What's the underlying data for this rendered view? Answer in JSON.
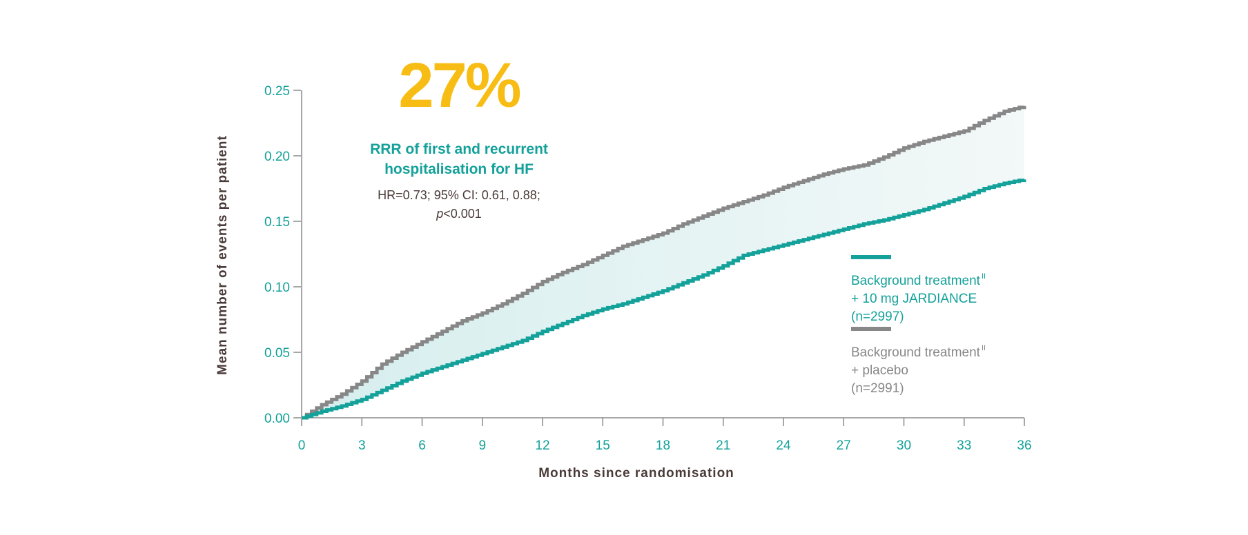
{
  "headline": {
    "value": "27%",
    "title_line1": "RRR of first and recurrent",
    "title_line2": "hospitalisation for HF",
    "stats_line1": "HR=0.73; 95% CI: 0.61, 0.88;",
    "stats_p": "p",
    "stats_p_value": "<0.001"
  },
  "legend": {
    "items": [
      {
        "line1": "Background treatment",
        "sup": "II",
        "line2": "+ 10 mg JARDIANCE",
        "line3": "(n=2997)",
        "color": "#13a19a"
      },
      {
        "line1": "Background treatment",
        "sup": "II",
        "line2": "+ placebo",
        "line3": "(n=2991)",
        "color": "#878787"
      }
    ]
  },
  "chart_data": {
    "type": "line",
    "xlabel": "Months since randomisation",
    "ylabel": "Mean number of events per patient",
    "xlim": [
      0,
      36
    ],
    "ylim": [
      0,
      0.25
    ],
    "xticks": [
      "0",
      "3",
      "6",
      "9",
      "12",
      "15",
      "18",
      "21",
      "24",
      "27",
      "30",
      "33",
      "36"
    ],
    "yticks": [
      "0.00",
      "0.05",
      "0.10",
      "0.15",
      "0.20",
      "0.25"
    ],
    "shaded_area_between_series": true,
    "series": [
      {
        "name": "Background treatment + placebo (n=2991)",
        "color": "#878787",
        "x": [
          0,
          1,
          2,
          3,
          4,
          5,
          6,
          7,
          8,
          9,
          10,
          11,
          12,
          13,
          14,
          15,
          16,
          17,
          18,
          19,
          20,
          21,
          22,
          23,
          24,
          25,
          26,
          27,
          28,
          29,
          30,
          31,
          32,
          33,
          34,
          35,
          36
        ],
        "y": [
          0,
          0.01,
          0.018,
          0.028,
          0.041,
          0.05,
          0.058,
          0.066,
          0.074,
          0.08,
          0.087,
          0.095,
          0.104,
          0.111,
          0.117,
          0.124,
          0.131,
          0.136,
          0.141,
          0.148,
          0.154,
          0.16,
          0.165,
          0.17,
          0.176,
          0.181,
          0.186,
          0.19,
          0.193,
          0.199,
          0.206,
          0.211,
          0.215,
          0.219,
          0.227,
          0.234,
          0.238
        ]
      },
      {
        "name": "Background treatment + 10 mg JARDIANCE (n=2997)",
        "color": "#13a19a",
        "x": [
          0,
          1,
          2,
          3,
          4,
          5,
          6,
          7,
          8,
          9,
          10,
          11,
          12,
          13,
          14,
          15,
          16,
          17,
          18,
          19,
          20,
          21,
          22,
          23,
          24,
          25,
          26,
          27,
          28,
          29,
          30,
          31,
          32,
          33,
          34,
          35,
          36
        ],
        "y": [
          0,
          0.005,
          0.009,
          0.014,
          0.021,
          0.028,
          0.034,
          0.039,
          0.044,
          0.049,
          0.054,
          0.059,
          0.066,
          0.072,
          0.078,
          0.083,
          0.087,
          0.092,
          0.097,
          0.103,
          0.109,
          0.116,
          0.124,
          0.128,
          0.132,
          0.136,
          0.14,
          0.144,
          0.148,
          0.151,
          0.155,
          0.159,
          0.164,
          0.169,
          0.175,
          0.179,
          0.182
        ]
      }
    ]
  }
}
